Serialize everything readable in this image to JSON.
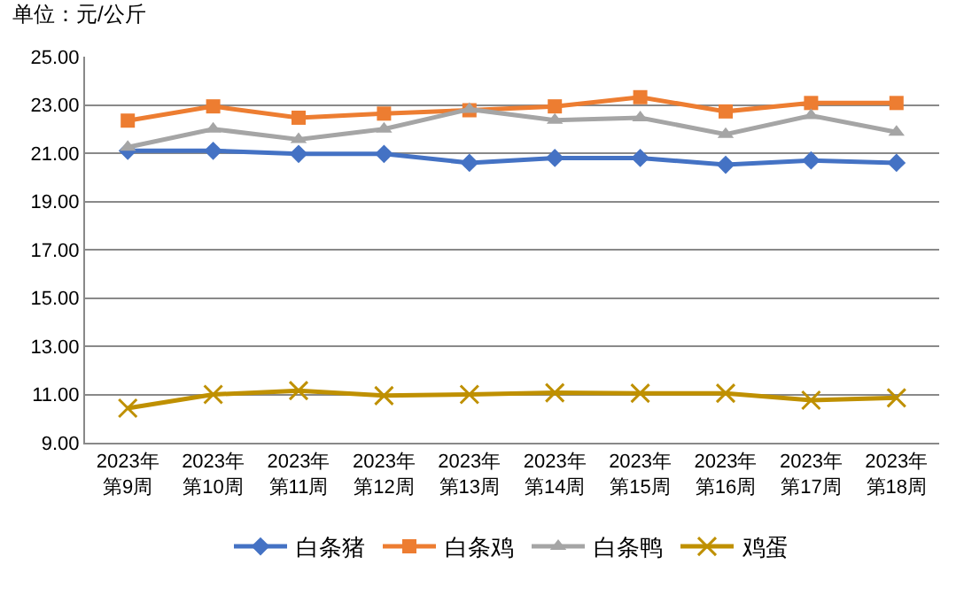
{
  "chart_data": {
    "type": "line",
    "ylabel": "单位：元/公斤",
    "categories": [
      "2023年第9周",
      "2023年第10周",
      "2023年第11周",
      "2023年第12周",
      "2023年第13周",
      "2023年第14周",
      "2023年第15周",
      "2023年第16周",
      "2023年第17周",
      "2023年第18周"
    ],
    "series": [
      {
        "name": "白条猪",
        "color": "#4472c4",
        "marker": "diamond",
        "values": [
          21.1,
          21.1,
          20.97,
          20.97,
          20.6,
          20.8,
          20.8,
          20.52,
          20.7,
          20.6
        ]
      },
      {
        "name": "白条鸡",
        "color": "#ed7d31",
        "marker": "square",
        "values": [
          22.35,
          22.94,
          22.47,
          22.64,
          22.78,
          22.94,
          23.32,
          22.73,
          23.08,
          23.08
        ]
      },
      {
        "name": "白条鸭",
        "color": "#a5a5a5",
        "marker": "triangle",
        "values": [
          21.25,
          22.0,
          21.57,
          22.0,
          22.82,
          22.37,
          22.47,
          21.78,
          22.56,
          21.87
        ]
      },
      {
        "name": "鸡蛋",
        "color": "#bf9000",
        "marker": "cross",
        "values": [
          10.43,
          11.0,
          11.16,
          10.95,
          11.0,
          11.07,
          11.05,
          11.05,
          10.76,
          10.86
        ]
      }
    ],
    "ylim": [
      9,
      25
    ],
    "yticks": [
      {
        "value": 9,
        "label": "9.00"
      },
      {
        "value": 11,
        "label": "11.00"
      },
      {
        "value": 13,
        "label": "13.00"
      },
      {
        "value": 15,
        "label": "15.00"
      },
      {
        "value": 17,
        "label": "17.00"
      },
      {
        "value": 19,
        "label": "19.00"
      },
      {
        "value": 21,
        "label": "21.00"
      },
      {
        "value": 23,
        "label": "23.00"
      },
      {
        "value": 25,
        "label": "25.00"
      }
    ],
    "grid": "y",
    "legend": "bottom"
  }
}
